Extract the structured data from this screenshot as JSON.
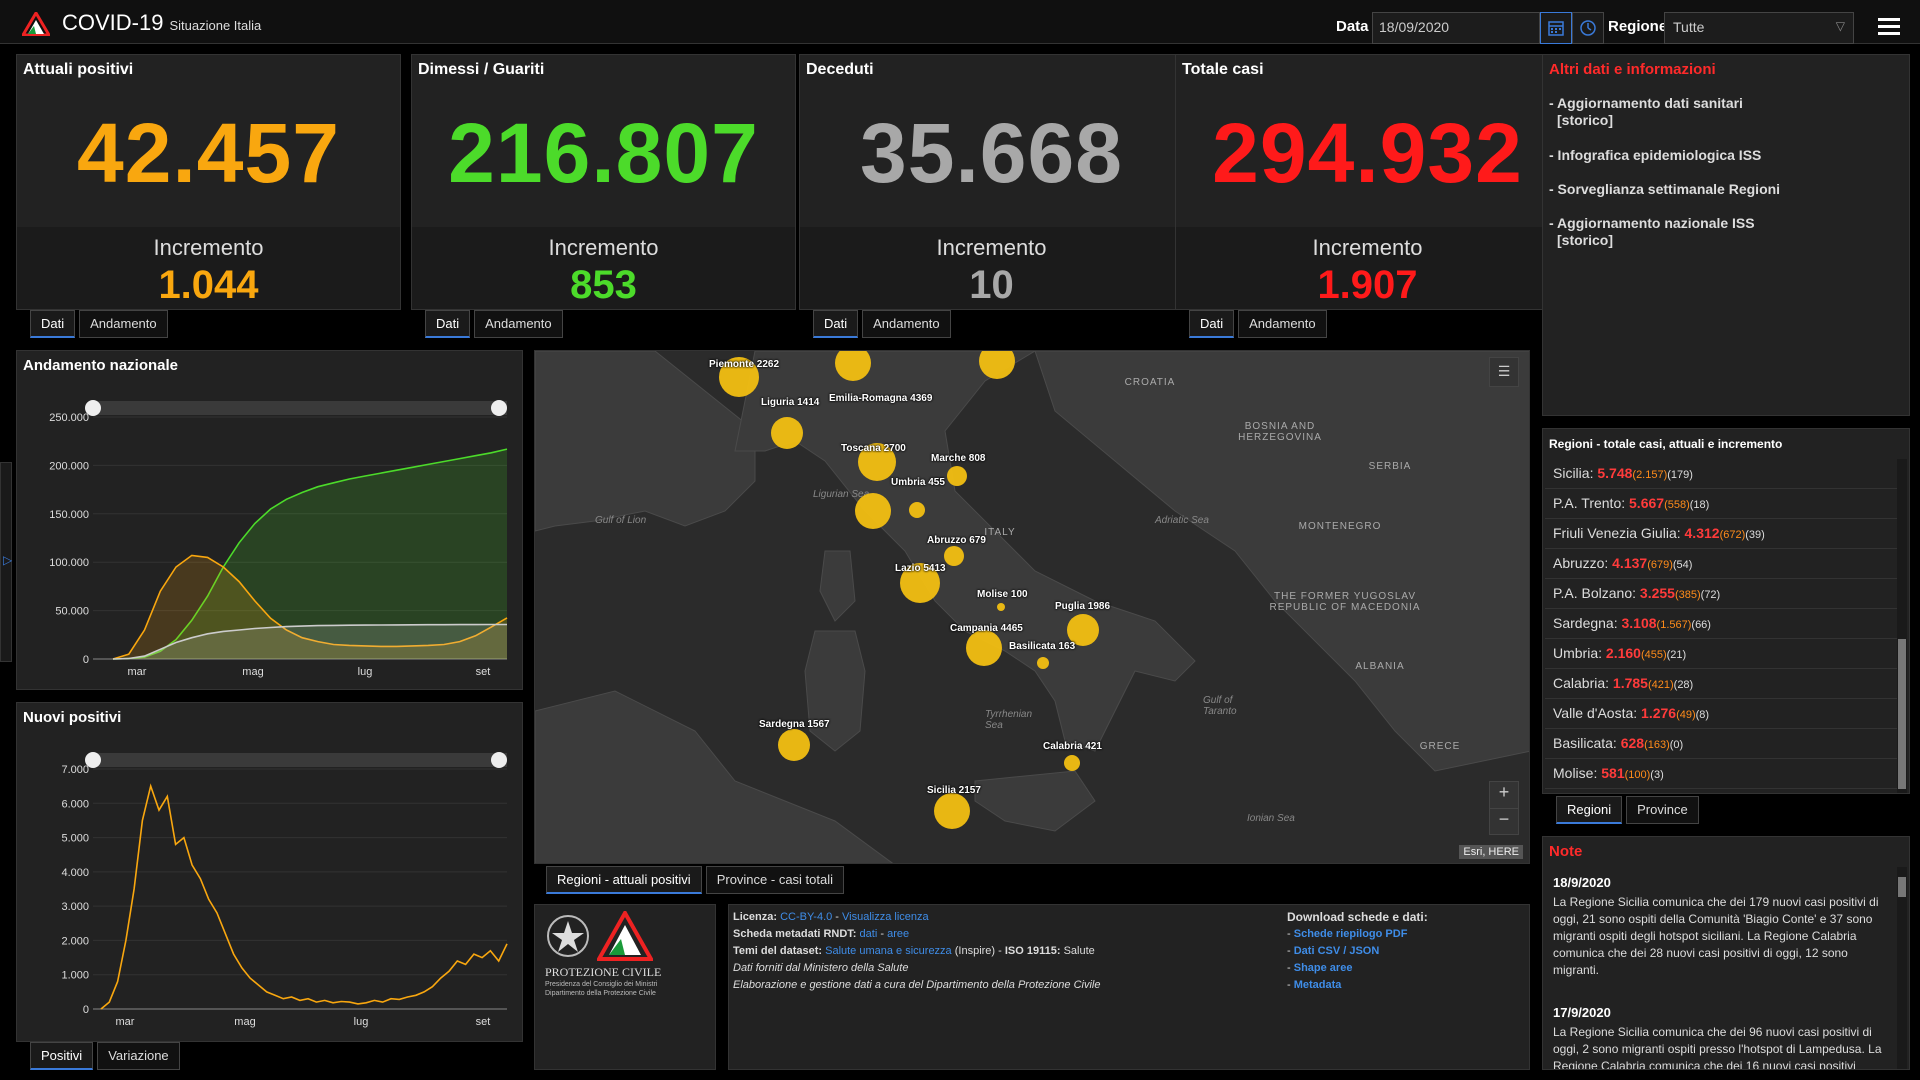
{
  "header": {
    "title": "COVID-19",
    "subtitle": "Situazione Italia",
    "date_label": "Data",
    "date_value": "18/09/2020",
    "region_label": "Regione",
    "region_value": "Tutte"
  },
  "cards": [
    {
      "title": "Attuali positivi",
      "value": "42.457",
      "incr_label": "Incremento",
      "incr": "1.044",
      "color": "#f9a70f",
      "tabs": [
        "Dati",
        "Andamento"
      ]
    },
    {
      "title": "Dimessi / Guariti",
      "value": "216.807",
      "incr_label": "Incremento",
      "incr": "853",
      "color": "#4cdb2a",
      "tabs": [
        "Dati",
        "Andamento"
      ]
    },
    {
      "title": "Deceduti",
      "value": "35.668",
      "incr_label": "Incremento",
      "incr": "10",
      "color": "#a8a8a8",
      "tabs": [
        "Dati",
        "Andamento"
      ]
    },
    {
      "title": "Totale casi",
      "value": "294.932",
      "incr_label": "Incremento",
      "incr": "1.907",
      "color": "#ff1a1a",
      "tabs": [
        "Dati",
        "Andamento"
      ]
    }
  ],
  "info": {
    "title": "Altri dati e informazioni",
    "items": [
      {
        "text": "- Aggiornamento dati sanitari",
        "sub": "[storico]"
      },
      {
        "text": "- Infografica epidemiologica ISS",
        "sub": ""
      },
      {
        "text": "- Sorveglianza settimanale Regioni",
        "sub": ""
      },
      {
        "text": "- Aggiornamento nazionale ISS",
        "sub": "[storico]"
      }
    ]
  },
  "trend_panel": {
    "title": "Andamento nazionale"
  },
  "new_panel": {
    "title": "Nuovi positivi",
    "tabs": [
      "Positivi",
      "Variazione"
    ]
  },
  "chart_data": [
    {
      "type": "line",
      "title": "Andamento nazionale",
      "x_ticks": [
        "mar",
        "mag",
        "lug",
        "set"
      ],
      "y_ticks": [
        "0",
        "50.000",
        "100.000",
        "150.000",
        "200.000",
        "250.000"
      ],
      "ylim": [
        0,
        250000
      ],
      "series": [
        {
          "color": "#4cdb2a",
          "values": [
            0,
            500,
            2000,
            8000,
            20000,
            40000,
            65000,
            95000,
            120000,
            140000,
            155000,
            165000,
            172000,
            178000,
            182000,
            186000,
            189000,
            192000,
            195000,
            198000,
            201000,
            204000,
            207000,
            210000,
            213000,
            216807
          ]
        },
        {
          "color": "#f9a70f",
          "values": [
            0,
            5000,
            30000,
            70000,
            95000,
            107000,
            105000,
            95000,
            80000,
            60000,
            42000,
            30000,
            22000,
            18000,
            15000,
            14000,
            13500,
            13000,
            13000,
            13500,
            14000,
            15000,
            18000,
            24000,
            33000,
            42457
          ]
        },
        {
          "color": "#cccccc",
          "values": [
            0,
            500,
            3000,
            10000,
            17000,
            22000,
            26000,
            28500,
            30000,
            31500,
            32500,
            33500,
            34000,
            34500,
            34700,
            34900,
            35000,
            35100,
            35200,
            35300,
            35400,
            35450,
            35500,
            35550,
            35600,
            35668
          ]
        }
      ]
    },
    {
      "type": "line",
      "title": "Nuovi positivi",
      "x_ticks": [
        "mar",
        "mag",
        "lug",
        "set"
      ],
      "y_ticks": [
        "0",
        "1.000",
        "2.000",
        "3.000",
        "4.000",
        "5.000",
        "6.000",
        "7.000"
      ],
      "ylim": [
        0,
        7000
      ],
      "series": [
        {
          "color": "#f9a70f",
          "values": [
            0,
            200,
            800,
            2000,
            3500,
            5500,
            6500,
            5800,
            6200,
            4800,
            5000,
            4200,
            3800,
            3200,
            2800,
            2200,
            1600,
            1200,
            900,
            700,
            500,
            400,
            300,
            350,
            250,
            300,
            200,
            250,
            180,
            220,
            200,
            150,
            180,
            250,
            200,
            300,
            280,
            350,
            400,
            500,
            650,
            900,
            1100,
            1400,
            1300,
            1600,
            1500,
            1700,
            1400,
            1900
          ]
        }
      ]
    }
  ],
  "map": {
    "countries": [
      "CROATIA",
      "BOSNIA AND HERZEGOVINA",
      "SERBIA",
      "MONTENEGRO",
      "THE FORMER YUGOSLAV REPUBLIC OF MACEDONIA",
      "ALBANIA",
      "GRECE",
      "ITALY"
    ],
    "seas": [
      "Gulf of Lion",
      "Ligurian Sea",
      "Adriatic Sea",
      "Tyrrhenian Sea",
      "Gulf of Taranto",
      "Ionian Sea"
    ],
    "bubbles": [
      {
        "label": "Piemonte 2262"
      },
      {
        "label": "Liguria 1414"
      },
      {
        "label": "Emilia-Romagna 4369"
      },
      {
        "label": "Toscana 2700"
      },
      {
        "label": "Marche 808"
      },
      {
        "label": "Umbria 455"
      },
      {
        "label": "Abruzzo 679"
      },
      {
        "label": "Lazio 5413"
      },
      {
        "label": "Molise 100"
      },
      {
        "label": "Puglia 1986"
      },
      {
        "label": "Campania 4465"
      },
      {
        "label": "Basilicata 163"
      },
      {
        "label": "Sardegna 1567"
      },
      {
        "label": "Calabria 421"
      },
      {
        "label": "Sicilia 2157"
      }
    ],
    "attribution": "Esri, HERE",
    "tabs": [
      "Regioni - attuali positivi",
      "Province - casi totali"
    ]
  },
  "regions_panel": {
    "title": "Regioni - totale casi, attuali e incremento",
    "rows": [
      {
        "name": "Sicilia:",
        "total": "5.748",
        "active": "(2.157)",
        "incr": "(179)"
      },
      {
        "name": "P.A. Trento:",
        "total": "5.667",
        "active": "(558)",
        "incr": "(18)"
      },
      {
        "name": "Friuli Venezia Giulia:",
        "total": "4.312",
        "active": "(672)",
        "incr": "(39)"
      },
      {
        "name": "Abruzzo:",
        "total": "4.137",
        "active": "(679)",
        "incr": "(54)"
      },
      {
        "name": "P.A. Bolzano:",
        "total": "3.255",
        "active": "(385)",
        "incr": "(72)"
      },
      {
        "name": "Sardegna:",
        "total": "3.108",
        "active": "(1.567)",
        "incr": "(66)"
      },
      {
        "name": "Umbria:",
        "total": "2.160",
        "active": "(455)",
        "incr": "(21)"
      },
      {
        "name": "Calabria:",
        "total": "1.785",
        "active": "(421)",
        "incr": "(28)"
      },
      {
        "name": "Valle d'Aosta:",
        "total": "1.276",
        "active": "(49)",
        "incr": "(8)"
      },
      {
        "name": "Basilicata:",
        "total": "628",
        "active": "(163)",
        "incr": "(0)"
      },
      {
        "name": "Molise:",
        "total": "581",
        "active": "(100)",
        "incr": "(3)"
      }
    ],
    "tabs": [
      "Regioni",
      "Province"
    ]
  },
  "notes": {
    "title": "Note",
    "entries": [
      {
        "date": "18/9/2020",
        "text": "La Regione Sicilia comunica che dei 179 nuovi casi positivi di oggi, 21 sono ospiti della Comunità 'Biagio Conte' e 37 sono migranti ospiti degli hotspot siciliani. La Regione Calabria comunica che dei 28 nuovi casi positivi di oggi, 12 sono migranti."
      },
      {
        "date": "17/9/2020",
        "text": "La Regione Sicilia comunica che dei 96 nuovi casi positivi di oggi, 2 sono migranti ospiti presso l'hotspot di Lampedusa. La Regione Calabria comunica che dei 16 nuovi casi positivi"
      }
    ]
  },
  "footer": {
    "logo_name": "PROTEZIONE CIVILE",
    "logo_sub1": "Presidenza del Consiglio dei Ministri",
    "logo_sub2": "Dipartimento della Protezione Civile",
    "lic_label": "Licenza:",
    "lic_val": "CC-BY-4.0",
    "lic_sep": " - ",
    "lic_link": "Visualizza licenza",
    "meta_label": "Scheda metadati RNDT:",
    "meta_link1": "dati",
    "meta_sep": " - ",
    "meta_link2": "aree",
    "theme_label": "Temi del dataset:",
    "theme_link": "Salute umana e sicurezza",
    "theme_mid": " (Inspire) - ",
    "theme_iso": "ISO 19115:",
    "theme_end": " Salute",
    "line4": "Dati forniti dal Ministero della Salute",
    "line5": "Elaborazione e gestione dati a cura del Dipartimento della Protezione Civile",
    "download_title": "Download schede e dati:",
    "downloads": [
      "Schede riepilogo PDF",
      "Dati CSV / JSON",
      "Shape aree",
      "Metadata"
    ]
  }
}
